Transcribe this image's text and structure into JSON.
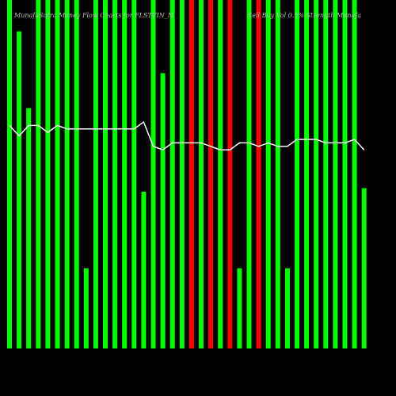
{
  "chart_data": {
    "type": "bar",
    "title": "MunafaSutra Money Flow Charts for FLSTVIN_N",
    "subtitle": "Sell Buy Vol 0.5% Strength Munafa",
    "ylim": [
      0,
      100
    ],
    "values": [
      100,
      91,
      69,
      100,
      100,
      100,
      100,
      100,
      23,
      100,
      100,
      100,
      100,
      100,
      45,
      100,
      79,
      100,
      100,
      100,
      100,
      100,
      100,
      100,
      23,
      100,
      100,
      100,
      100,
      23,
      100,
      100,
      100,
      100,
      100,
      100,
      100,
      46
    ],
    "colors": [
      "#00ff00",
      "#00ff00",
      "#00ff00",
      "#00ff00",
      "#00ff00",
      "#00ff00",
      "#00ff00",
      "#00ff00",
      "#00ff00",
      "#00ff00",
      "#00ff00",
      "#00ff00",
      "#00ff00",
      "#00ff00",
      "#00ff00",
      "#00ff00",
      "#00ff00",
      "#00ff00",
      "#00ff00",
      "#ff0000",
      "#00ff00",
      "#ff0000",
      "#00ff00",
      "#ff0000",
      "#00ff00",
      "#00ff00",
      "#ff0000",
      "#00ff00",
      "#00ff00",
      "#00ff00",
      "#00ff00",
      "#00ff00",
      "#00ff00",
      "#00ff00",
      "#00ff00",
      "#00ff00",
      "#00ff00",
      "#00ff00"
    ],
    "line": {
      "color": "#ffffff",
      "values": [
        64,
        61,
        64,
        64,
        62,
        64,
        63,
        63,
        63,
        63,
        63,
        63,
        63,
        63,
        65,
        58,
        57,
        59,
        59,
        59,
        59,
        58,
        57,
        57,
        59,
        59,
        58,
        59,
        58,
        58,
        60,
        60,
        60,
        59,
        59,
        59,
        60,
        57
      ]
    }
  }
}
